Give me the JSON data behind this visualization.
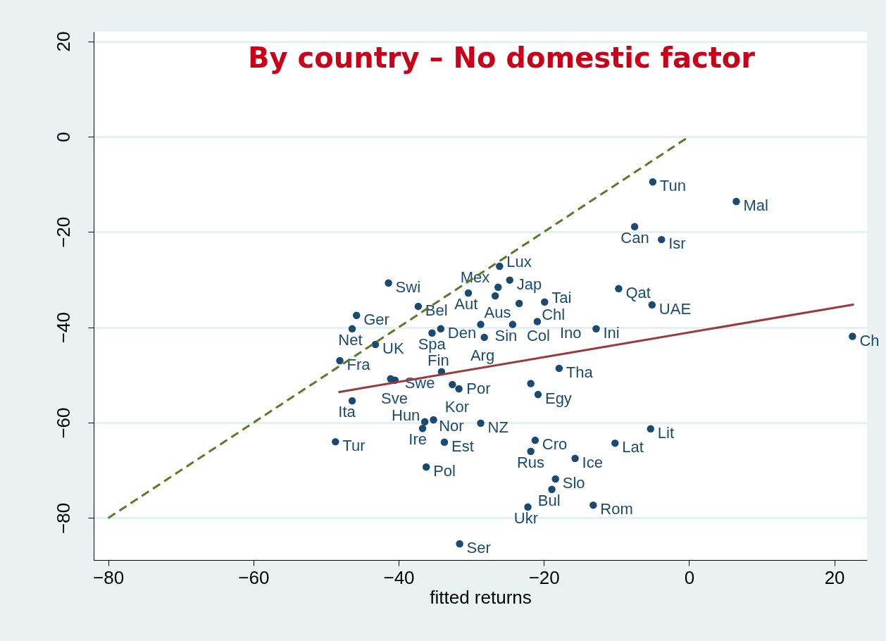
{
  "chart_data": {
    "type": "scatter",
    "title": "By country – No domestic factor",
    "xlabel": "fitted returns",
    "xlim": [
      -82,
      24.5
    ],
    "ylim": [
      -88.8,
      22
    ],
    "xticks": [
      -80,
      -60,
      -40,
      -20,
      0,
      20
    ],
    "yticks": [
      -80,
      -60,
      -40,
      -20,
      0,
      20
    ],
    "grid": "y",
    "series": [
      {
        "color": "#1a4a72",
        "marker": "circle",
        "x": [
          -5.0,
          6.5,
          -7.5,
          -3.8,
          -26.1,
          -41.4,
          -24.7,
          -26.3,
          -30.4,
          -26.7,
          -23.4,
          -19.9,
          -37.3,
          -45.8,
          -46.4,
          -43.2,
          -35.4,
          -34.2,
          -28.7,
          -28.2,
          -24.3,
          -20.9,
          -12.8,
          -9.7,
          -5.1,
          22.5,
          -48.1,
          -41.1,
          -40.5,
          -34.1,
          -32.6,
          -31.7,
          -17.9,
          -21.8,
          -20.8,
          -46.4,
          -36.4,
          -35.2,
          -36.7,
          -28.7,
          -48.7,
          -33.7,
          -21.2,
          -21.8,
          -15.7,
          -10.2,
          -5.3,
          -36.2,
          -18.4,
          -18.9,
          -22.2,
          -13.2,
          -31.6
        ],
        "values": [
          -9.5,
          -13.6,
          -18.9,
          -21.6,
          -27.2,
          -30.7,
          -30.1,
          -31.6,
          -32.8,
          -33.4,
          -35.0,
          -34.7,
          -35.6,
          -37.5,
          -40.3,
          -43.6,
          -41.2,
          -40.3,
          -39.4,
          -42.1,
          -39.4,
          -38.8,
          -40.3,
          -31.9,
          -35.3,
          -41.9,
          -47.0,
          -50.8,
          -51.1,
          -49.3,
          -52.0,
          -52.9,
          -48.6,
          -51.8,
          -54.1,
          -55.4,
          -59.8,
          -59.4,
          -61.2,
          -60.1,
          -64.0,
          -64.1,
          -63.7,
          -66.0,
          -67.5,
          -64.3,
          -61.3,
          -69.3,
          -71.8,
          -74.0,
          -77.7,
          -77.3,
          -85.4
        ]
      },
      {
        "type": "line",
        "color": "#9b3a3a",
        "line_style": "solid",
        "x": [
          -48.3,
          22.7
        ],
        "values": [
          -53.6,
          -35.2
        ]
      },
      {
        "type": "line",
        "color": "#5a7a2a",
        "line_style": "dashed",
        "x": [
          -80,
          0
        ],
        "values": [
          -80,
          0
        ]
      }
    ],
    "annotations": [
      {
        "text": "Tun",
        "x": -5.0,
        "y": -9.5
      },
      {
        "text": "Mal",
        "x": 6.5,
        "y": -13.6
      },
      {
        "text": "Can",
        "x": -7.5,
        "y": -18.9
      },
      {
        "text": "Isr",
        "x": -3.8,
        "y": -21.6
      },
      {
        "text": "Lux",
        "x": -26.1,
        "y": -27.2
      },
      {
        "text": "Swi",
        "x": -41.4,
        "y": -30.7
      },
      {
        "text": "Jap",
        "x": -24.7,
        "y": -30.1
      },
      {
        "text": "Aus",
        "x": -26.3,
        "y": -31.6
      },
      {
        "text": "Aut",
        "x": -30.4,
        "y": -32.8
      },
      {
        "text": "Mex",
        "x": -26.7,
        "y": -33.4
      },
      {
        "text": "Chl",
        "x": -23.4,
        "y": -35.0
      },
      {
        "text": "Tai",
        "x": -19.9,
        "y": -34.7
      },
      {
        "text": "Bel",
        "x": -37.3,
        "y": -35.6
      },
      {
        "text": "Ger",
        "x": -45.8,
        "y": -37.5
      },
      {
        "text": "Net",
        "x": -46.4,
        "y": -40.3
      },
      {
        "text": "UK",
        "x": -43.2,
        "y": -43.6
      },
      {
        "text": "Spa",
        "x": -35.4,
        "y": -41.2
      },
      {
        "text": "Den",
        "x": -34.2,
        "y": -40.3
      },
      {
        "text": "Sin",
        "x": -28.7,
        "y": -39.4
      },
      {
        "text": "Arg",
        "x": -28.2,
        "y": -42.1
      },
      {
        "text": "Col",
        "x": -24.3,
        "y": -39.4
      },
      {
        "text": "Ino",
        "x": -20.9,
        "y": -38.8
      },
      {
        "text": "Ini",
        "x": -12.8,
        "y": -40.3
      },
      {
        "text": "Qat",
        "x": -9.7,
        "y": -31.9
      },
      {
        "text": "UAE",
        "x": -5.1,
        "y": -35.3
      },
      {
        "text": "Ch",
        "x": 22.5,
        "y": -41.9
      },
      {
        "text": "Fra",
        "x": -48.1,
        "y": -47.0
      },
      {
        "text": "Swe",
        "x": -41.1,
        "y": -50.8
      },
      {
        "text": "Sve",
        "x": -40.5,
        "y": -51.1
      },
      {
        "text": "Fin",
        "x": -34.1,
        "y": -49.3
      },
      {
        "text": "Por",
        "x": -32.6,
        "y": -52.0
      },
      {
        "text": "Kor",
        "x": -31.7,
        "y": -52.9
      },
      {
        "text": "Tha",
        "x": -17.9,
        "y": -48.6
      },
      {
        "text": "Egy",
        "x": -20.8,
        "y": -54.1
      },
      {
        "text": "Ita",
        "x": -46.4,
        "y": -55.4
      },
      {
        "text": "Nor",
        "x": -36.4,
        "y": -59.8
      },
      {
        "text": "Hun",
        "x": -35.2,
        "y": -59.4
      },
      {
        "text": "Ire",
        "x": -36.7,
        "y": -61.2
      },
      {
        "text": "NZ",
        "x": -28.7,
        "y": -60.1
      },
      {
        "text": "Tur",
        "x": -48.7,
        "y": -64.0
      },
      {
        "text": "Est",
        "x": -33.7,
        "y": -64.1
      },
      {
        "text": "Cro",
        "x": -21.2,
        "y": -63.7
      },
      {
        "text": "Rus",
        "x": -21.8,
        "y": -66.0
      },
      {
        "text": "Ice",
        "x": -15.7,
        "y": -67.5
      },
      {
        "text": "Lat",
        "x": -10.2,
        "y": -64.3
      },
      {
        "text": "Lit",
        "x": -5.3,
        "y": -61.3
      },
      {
        "text": "Pol",
        "x": -36.2,
        "y": -69.3
      },
      {
        "text": "Slo",
        "x": -18.4,
        "y": -71.8
      },
      {
        "text": "Bul",
        "x": -18.9,
        "y": -74.0
      },
      {
        "text": "Ukr",
        "x": -22.2,
        "y": -77.7
      },
      {
        "text": "Rom",
        "x": -13.2,
        "y": -77.3
      },
      {
        "text": "Ser",
        "x": -31.6,
        "y": -85.4
      }
    ]
  }
}
